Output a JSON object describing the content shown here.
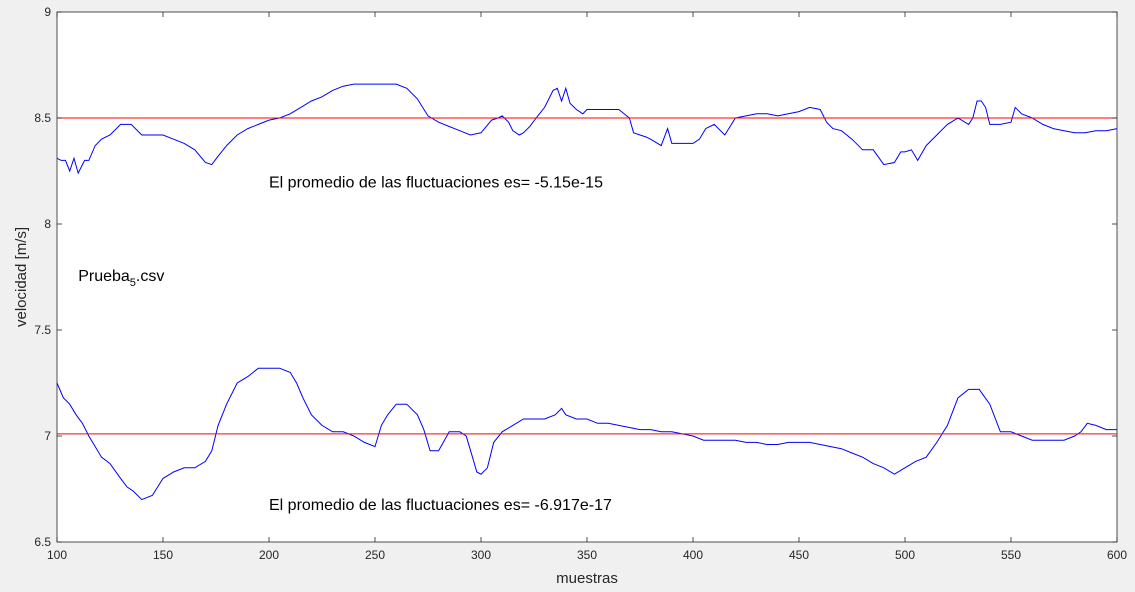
{
  "chart_data": {
    "type": "line",
    "xlabel": "muestras",
    "ylabel": "velocidad [m/s]",
    "xlim": [
      100,
      600
    ],
    "ylim": [
      6.5,
      9
    ],
    "xticks": [
      "100",
      "150",
      "200",
      "250",
      "300",
      "350",
      "400",
      "450",
      "500",
      "550",
      "600"
    ],
    "yticks": [
      "6.5",
      "7",
      "7.5",
      "8",
      "8.5",
      "9"
    ],
    "grid": false,
    "colors": {
      "series": "#0000ff",
      "mean": "#ff0000"
    },
    "series": [
      {
        "x": [
          100,
          102,
          104,
          106,
          108,
          110,
          113,
          115,
          118,
          121,
          125,
          130,
          135,
          140,
          145,
          150,
          155,
          160,
          165,
          170,
          173,
          176,
          180,
          185,
          190,
          195,
          200,
          205,
          210,
          215,
          220,
          225,
          230,
          235,
          240,
          245,
          250,
          255,
          260,
          265,
          270,
          275,
          280,
          285,
          290,
          295,
          300,
          305,
          308,
          310,
          313,
          315,
          318,
          320,
          323,
          326,
          330,
          334,
          336,
          338,
          340,
          342,
          345,
          348,
          350,
          355,
          360,
          365,
          370,
          372,
          375,
          378,
          380,
          385,
          388,
          390,
          395,
          400,
          403,
          406,
          410,
          415,
          420,
          425,
          430,
          435,
          440,
          445,
          450,
          455,
          460,
          463,
          466,
          470,
          475,
          480,
          485,
          490,
          495,
          498,
          500,
          503,
          506,
          510,
          515,
          520,
          525,
          530,
          532,
          534,
          536,
          538,
          540,
          545,
          550,
          552,
          555,
          560,
          565,
          570,
          575,
          580,
          585,
          590,
          595,
          600
        ],
        "y": [
          8.31,
          8.3,
          8.3,
          8.25,
          8.31,
          8.24,
          8.3,
          8.3,
          8.37,
          8.4,
          8.42,
          8.47,
          8.47,
          8.42,
          8.42,
          8.42,
          8.4,
          8.38,
          8.35,
          8.29,
          8.28,
          8.32,
          8.37,
          8.42,
          8.45,
          8.47,
          8.49,
          8.5,
          8.52,
          8.55,
          8.58,
          8.6,
          8.63,
          8.65,
          8.66,
          8.66,
          8.66,
          8.66,
          8.66,
          8.64,
          8.59,
          8.51,
          8.48,
          8.46,
          8.44,
          8.42,
          8.43,
          8.49,
          8.5,
          8.51,
          8.48,
          8.44,
          8.42,
          8.43,
          8.46,
          8.5,
          8.55,
          8.63,
          8.64,
          8.58,
          8.64,
          8.57,
          8.54,
          8.52,
          8.54,
          8.54,
          8.54,
          8.54,
          8.5,
          8.43,
          8.42,
          8.41,
          8.4,
          8.37,
          8.45,
          8.38,
          8.38,
          8.38,
          8.4,
          8.45,
          8.47,
          8.42,
          8.5,
          8.51,
          8.52,
          8.52,
          8.51,
          8.52,
          8.53,
          8.55,
          8.54,
          8.48,
          8.45,
          8.44,
          8.4,
          8.35,
          8.35,
          8.28,
          8.29,
          8.34,
          8.34,
          8.35,
          8.3,
          8.37,
          8.42,
          8.47,
          8.5,
          8.47,
          8.5,
          8.58,
          8.58,
          8.55,
          8.47,
          8.47,
          8.48,
          8.55,
          8.52,
          8.5,
          8.47,
          8.45,
          8.44,
          8.43,
          8.43,
          8.44,
          8.44,
          8.45
        ]
      },
      {
        "x": [
          100,
          103,
          106,
          109,
          112,
          115,
          118,
          121,
          125,
          130,
          133,
          136,
          140,
          145,
          150,
          155,
          160,
          165,
          170,
          173,
          176,
          180,
          185,
          190,
          195,
          200,
          205,
          210,
          213,
          216,
          220,
          225,
          230,
          235,
          240,
          245,
          250,
          253,
          256,
          260,
          265,
          270,
          273,
          276,
          280,
          285,
          290,
          293,
          296,
          298,
          300,
          303,
          306,
          310,
          315,
          320,
          325,
          330,
          335,
          338,
          340,
          345,
          350,
          355,
          360,
          365,
          370,
          375,
          380,
          385,
          390,
          395,
          400,
          405,
          410,
          415,
          420,
          425,
          430,
          435,
          440,
          445,
          450,
          455,
          460,
          465,
          470,
          475,
          480,
          485,
          490,
          495,
          500,
          505,
          510,
          515,
          520,
          525,
          530,
          535,
          540,
          545,
          550,
          555,
          560,
          565,
          570,
          575,
          580,
          583,
          586,
          590,
          595,
          600
        ],
        "y": [
          7.25,
          7.18,
          7.15,
          7.1,
          7.06,
          7.0,
          6.95,
          6.9,
          6.87,
          6.8,
          6.76,
          6.74,
          6.7,
          6.72,
          6.8,
          6.83,
          6.85,
          6.85,
          6.88,
          6.93,
          7.05,
          7.15,
          7.25,
          7.28,
          7.32,
          7.32,
          7.32,
          7.3,
          7.25,
          7.18,
          7.1,
          7.05,
          7.02,
          7.02,
          7.0,
          6.97,
          6.95,
          7.05,
          7.1,
          7.15,
          7.15,
          7.1,
          7.03,
          6.93,
          6.93,
          7.02,
          7.02,
          7.0,
          6.9,
          6.83,
          6.82,
          6.85,
          6.97,
          7.02,
          7.05,
          7.08,
          7.08,
          7.08,
          7.1,
          7.13,
          7.1,
          7.08,
          7.08,
          7.06,
          7.06,
          7.05,
          7.04,
          7.03,
          7.03,
          7.02,
          7.02,
          7.01,
          7.0,
          6.98,
          6.98,
          6.98,
          6.98,
          6.97,
          6.97,
          6.96,
          6.96,
          6.97,
          6.97,
          6.97,
          6.96,
          6.95,
          6.94,
          6.92,
          6.9,
          6.87,
          6.85,
          6.82,
          6.85,
          6.88,
          6.9,
          6.97,
          7.05,
          7.18,
          7.22,
          7.22,
          7.15,
          7.02,
          7.02,
          7.0,
          6.98,
          6.98,
          6.98,
          6.98,
          7.0,
          7.02,
          7.06,
          7.05,
          7.03,
          7.03
        ]
      }
    ],
    "mean_lines": [
      8.5,
      7.01
    ],
    "annotations": [
      {
        "text": "El promedio de las fluctuaciones es= -5.15e-15",
        "x": 200,
        "y": 8.2
      },
      {
        "text": "El promedio de las fluctuaciones es= -6.917e-17",
        "x": 200,
        "y": 6.68
      }
    ],
    "file_label": {
      "base": "Prueba",
      "sub": "5",
      "suffix": ".csv",
      "x": 110,
      "y": 7.76
    }
  }
}
